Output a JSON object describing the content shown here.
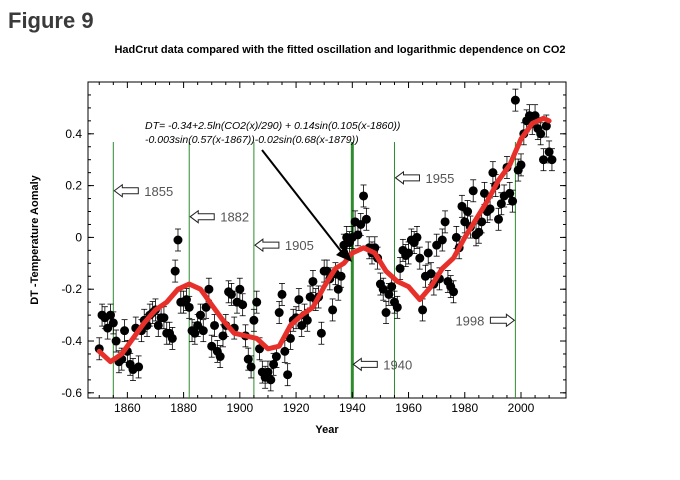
{
  "figure_label": "Figure 9",
  "colors": {
    "fit": "#e8302a",
    "points": "#000000",
    "markers": "#2e8b2e"
  },
  "chart_data": {
    "type": "scatter",
    "title": "HadCrut data compared with the fitted oscillation and logarithmic dependence on CO2",
    "xlabel": "Year",
    "ylabel": "DT -Temperature Aomaly",
    "xlim": [
      1846,
      2016
    ],
    "ylim": [
      -0.62,
      0.6
    ],
    "xticks": [
      1860,
      1880,
      1900,
      1920,
      1940,
      1960,
      1980,
      2000
    ],
    "yticks": [
      -0.6,
      -0.4,
      -0.2,
      0,
      0.2,
      0.4
    ],
    "ytick_labels": [
      "-0.6",
      "-0.4",
      "-0.2",
      "0",
      "0.2",
      "0.4"
    ],
    "formula": [
      "DT= -0.34+2.5ln(CO2(x)/290) + 0.14sin(0.105(x-1860))",
      "-0.003sin(0.57(x-1867))-0.02sin(0.68(x-1879))"
    ],
    "markers": [
      {
        "year": 1855,
        "label": "1855",
        "arrow_y": 0.18,
        "text_side": "right"
      },
      {
        "year": 1882,
        "label": "1882",
        "arrow_y": 0.08,
        "text_side": "right"
      },
      {
        "year": 1905,
        "label": "1905",
        "arrow_y": -0.03,
        "text_side": "right"
      },
      {
        "year": 1940,
        "label": "1940",
        "arrow_y": -0.49,
        "text_side": "right"
      },
      {
        "year": 1955,
        "label": "1955",
        "arrow_y": 0.23,
        "text_side": "right"
      },
      {
        "year": 1998,
        "label": "1998",
        "arrow_y": -0.32,
        "text_side": "left"
      }
    ],
    "observed": {
      "x": [
        1850,
        1851,
        1852,
        1853,
        1854,
        1855,
        1856,
        1857,
        1858,
        1859,
        1860,
        1861,
        1862,
        1863,
        1864,
        1865,
        1866,
        1867,
        1868,
        1869,
        1870,
        1871,
        1872,
        1873,
        1874,
        1875,
        1876,
        1877,
        1878,
        1879,
        1880,
        1881,
        1882,
        1883,
        1884,
        1885,
        1886,
        1887,
        1888,
        1889,
        1890,
        1891,
        1892,
        1893,
        1894,
        1895,
        1896,
        1897,
        1898,
        1899,
        1900,
        1901,
        1902,
        1903,
        1904,
        1905,
        1906,
        1907,
        1908,
        1909,
        1910,
        1911,
        1912,
        1913,
        1914,
        1915,
        1916,
        1917,
        1918,
        1919,
        1920,
        1921,
        1922,
        1923,
        1924,
        1925,
        1926,
        1927,
        1928,
        1929,
        1930,
        1931,
        1932,
        1933,
        1934,
        1935,
        1936,
        1937,
        1938,
        1939,
        1940,
        1941,
        1942,
        1943,
        1944,
        1945,
        1946,
        1947,
        1948,
        1949,
        1950,
        1951,
        1952,
        1953,
        1954,
        1955,
        1956,
        1957,
        1958,
        1959,
        1960,
        1961,
        1962,
        1963,
        1964,
        1965,
        1966,
        1967,
        1968,
        1969,
        1970,
        1971,
        1972,
        1973,
        1974,
        1975,
        1976,
        1977,
        1978,
        1979,
        1980,
        1981,
        1982,
        1983,
        1984,
        1985,
        1986,
        1987,
        1988,
        1989,
        1990,
        1991,
        1992,
        1993,
        1994,
        1995,
        1996,
        1997,
        1998,
        1999,
        2000,
        2001,
        2002,
        2003,
        2004,
        2005,
        2006,
        2007,
        2008,
        2009,
        2010,
        2011
      ],
      "y": [
        -0.43,
        -0.3,
        -0.31,
        -0.35,
        -0.3,
        -0.33,
        -0.4,
        -0.48,
        -0.47,
        -0.36,
        -0.44,
        -0.49,
        -0.51,
        -0.35,
        -0.5,
        -0.36,
        -0.32,
        -0.34,
        -0.3,
        -0.29,
        -0.28,
        -0.34,
        -0.31,
        -0.31,
        -0.37,
        -0.37,
        -0.39,
        -0.13,
        -0.01,
        -0.25,
        -0.25,
        -0.24,
        -0.27,
        -0.36,
        -0.37,
        -0.34,
        -0.3,
        -0.36,
        -0.27,
        -0.2,
        -0.42,
        -0.34,
        -0.44,
        -0.46,
        -0.38,
        -0.34,
        -0.21,
        -0.22,
        -0.35,
        -0.25,
        -0.2,
        -0.26,
        -0.38,
        -0.47,
        -0.5,
        -0.32,
        -0.25,
        -0.43,
        -0.52,
        -0.54,
        -0.52,
        -0.55,
        -0.49,
        -0.46,
        -0.29,
        -0.22,
        -0.44,
        -0.53,
        -0.39,
        -0.32,
        -0.31,
        -0.24,
        -0.34,
        -0.3,
        -0.32,
        -0.23,
        -0.17,
        -0.24,
        -0.23,
        -0.37,
        -0.13,
        -0.13,
        -0.16,
        -0.28,
        -0.14,
        -0.2,
        -0.15,
        -0.03,
        0.0,
        -0.02,
        0.0,
        0.06,
        0.01,
        0.05,
        0.16,
        0.07,
        -0.04,
        -0.06,
        -0.04,
        -0.08,
        -0.18,
        -0.2,
        -0.29,
        -0.22,
        -0.19,
        -0.25,
        -0.27,
        -0.12,
        -0.05,
        -0.07,
        -0.06,
        -0.01,
        -0.02,
        0.0,
        -0.08,
        -0.28,
        -0.15,
        -0.06,
        -0.14,
        -0.18,
        -0.03,
        -0.16,
        -0.01,
        0.06,
        -0.17,
        -0.19,
        -0.21,
        0.0,
        -0.04,
        0.12,
        0.06,
        0.1,
        0.04,
        0.18,
        0.01,
        0.02,
        0.06,
        0.17,
        0.1,
        0.11,
        0.25,
        0.2,
        0.07,
        0.13,
        0.16,
        0.27,
        0.17,
        0.14,
        0.53,
        0.26,
        0.28,
        0.4,
        0.45,
        0.47,
        0.44,
        0.47,
        0.42,
        0.4,
        0.3,
        0.43,
        0.33,
        0.3
      ]
    },
    "fit": {
      "x": [
        1850,
        1854,
        1858,
        1862,
        1866,
        1870,
        1874,
        1878,
        1882,
        1886,
        1890,
        1894,
        1898,
        1902,
        1906,
        1910,
        1914,
        1918,
        1922,
        1926,
        1930,
        1934,
        1937,
        1940,
        1944,
        1948,
        1952,
        1956,
        1960,
        1964,
        1968,
        1972,
        1976,
        1980,
        1984,
        1988,
        1992,
        1996,
        2000,
        2004,
        2008,
        2010
      ],
      "y": [
        -0.44,
        -0.48,
        -0.45,
        -0.39,
        -0.33,
        -0.28,
        -0.25,
        -0.2,
        -0.18,
        -0.2,
        -0.26,
        -0.32,
        -0.37,
        -0.38,
        -0.39,
        -0.43,
        -0.42,
        -0.34,
        -0.3,
        -0.27,
        -0.19,
        -0.12,
        -0.1,
        -0.06,
        -0.04,
        -0.06,
        -0.13,
        -0.17,
        -0.19,
        -0.24,
        -0.19,
        -0.12,
        -0.08,
        0.0,
        0.07,
        0.14,
        0.22,
        0.28,
        0.38,
        0.44,
        0.46,
        0.45
      ]
    }
  }
}
